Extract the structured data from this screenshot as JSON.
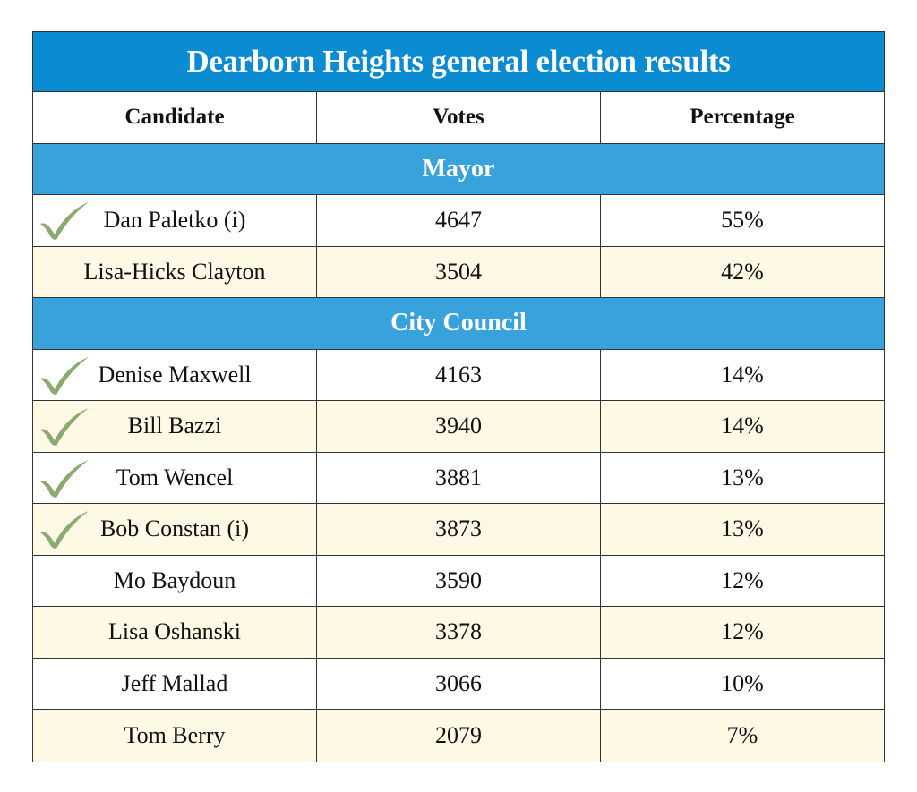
{
  "title": "Dearborn Heights general election results",
  "headers": [
    "Candidate",
    "Votes",
    "Percentage"
  ],
  "colors": {
    "title_bg": "#0a8bd2",
    "section_bg": "#38a2dc",
    "alt_row_bg": "#fdf9e5",
    "winner_check": "#8aaa70"
  },
  "chart_data": {
    "type": "table",
    "title": "Dearborn Heights general election results",
    "columns": [
      "Candidate",
      "Votes",
      "Percentage"
    ],
    "sections": [
      {
        "name": "Mayor",
        "rows": [
          {
            "candidate": "Dan Paletko (i)",
            "votes": "4647",
            "percentage": "55%",
            "winner": true
          },
          {
            "candidate": "Lisa-Hicks Clayton",
            "votes": "3504",
            "percentage": "42%",
            "winner": false
          }
        ]
      },
      {
        "name": "City Council",
        "rows": [
          {
            "candidate": "Denise Maxwell",
            "votes": "4163",
            "percentage": "14%",
            "winner": true
          },
          {
            "candidate": "Bill Bazzi",
            "votes": "3940",
            "percentage": "14%",
            "winner": true
          },
          {
            "candidate": "Tom Wencel",
            "votes": "3881",
            "percentage": "13%",
            "winner": true
          },
          {
            "candidate": "Bob Constan (i)",
            "votes": "3873",
            "percentage": "13%",
            "winner": true
          },
          {
            "candidate": "Mo Baydoun",
            "votes": "3590",
            "percentage": "12%",
            "winner": false
          },
          {
            "candidate": "Lisa Oshanski",
            "votes": "3378",
            "percentage": "12%",
            "winner": false
          },
          {
            "candidate": "Jeff Mallad",
            "votes": "3066",
            "percentage": "10%",
            "winner": false
          },
          {
            "candidate": "Tom Berry",
            "votes": "2079",
            "percentage": "7%",
            "winner": false
          }
        ]
      }
    ]
  }
}
